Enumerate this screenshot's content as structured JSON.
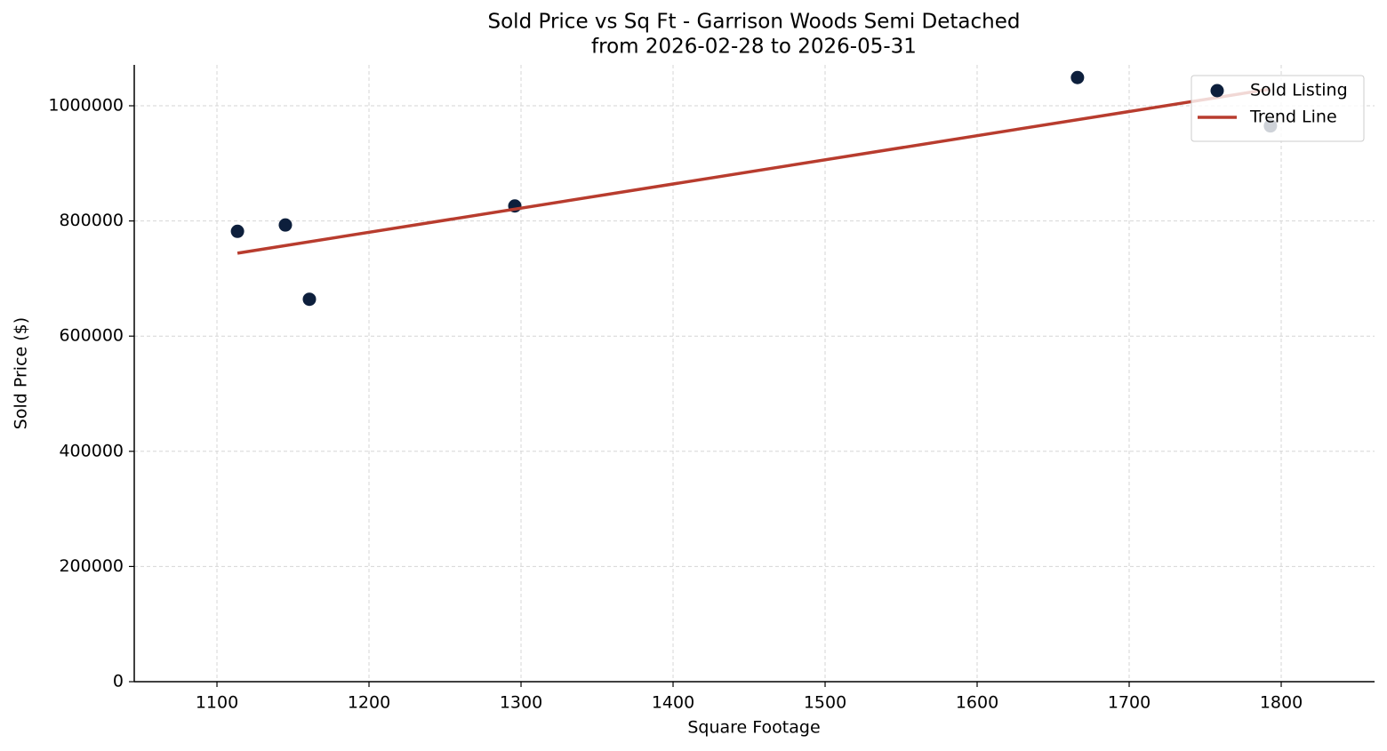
{
  "chart_data": {
    "type": "scatter",
    "title": "Sold Price vs Sq Ft - Garrison Woods Semi Detached",
    "subtitle": "from 2026-02-28 to 2026-05-31",
    "x_label": "Square Footage",
    "y_label": "Sold Price ($)",
    "series": [
      {
        "name": "Sold Listing",
        "type": "scatter",
        "color": "#0d1f3c",
        "x": [
          1113.5,
          1145,
          1160.8,
          1295.9,
          1666,
          1792.9
        ],
        "values": [
          782000,
          793000,
          664000,
          826000,
          1049000,
          965000
        ]
      },
      {
        "name": "Trend Line",
        "type": "line",
        "color": "#b83c2e",
        "x": [
          1113.5,
          1792.9
        ],
        "values": [
          744000,
          1029000
        ]
      }
    ],
    "xlim": [
      1045.6,
      1861.4
    ],
    "xticks": [
      1100,
      1200,
      1300,
      1400,
      1500,
      1600,
      1700,
      1800
    ],
    "ylim": [
      0,
      1071000
    ],
    "yticks": [
      0,
      200000,
      400000,
      600000,
      800000,
      1000000
    ],
    "grid": true,
    "legend": "upper right"
  }
}
